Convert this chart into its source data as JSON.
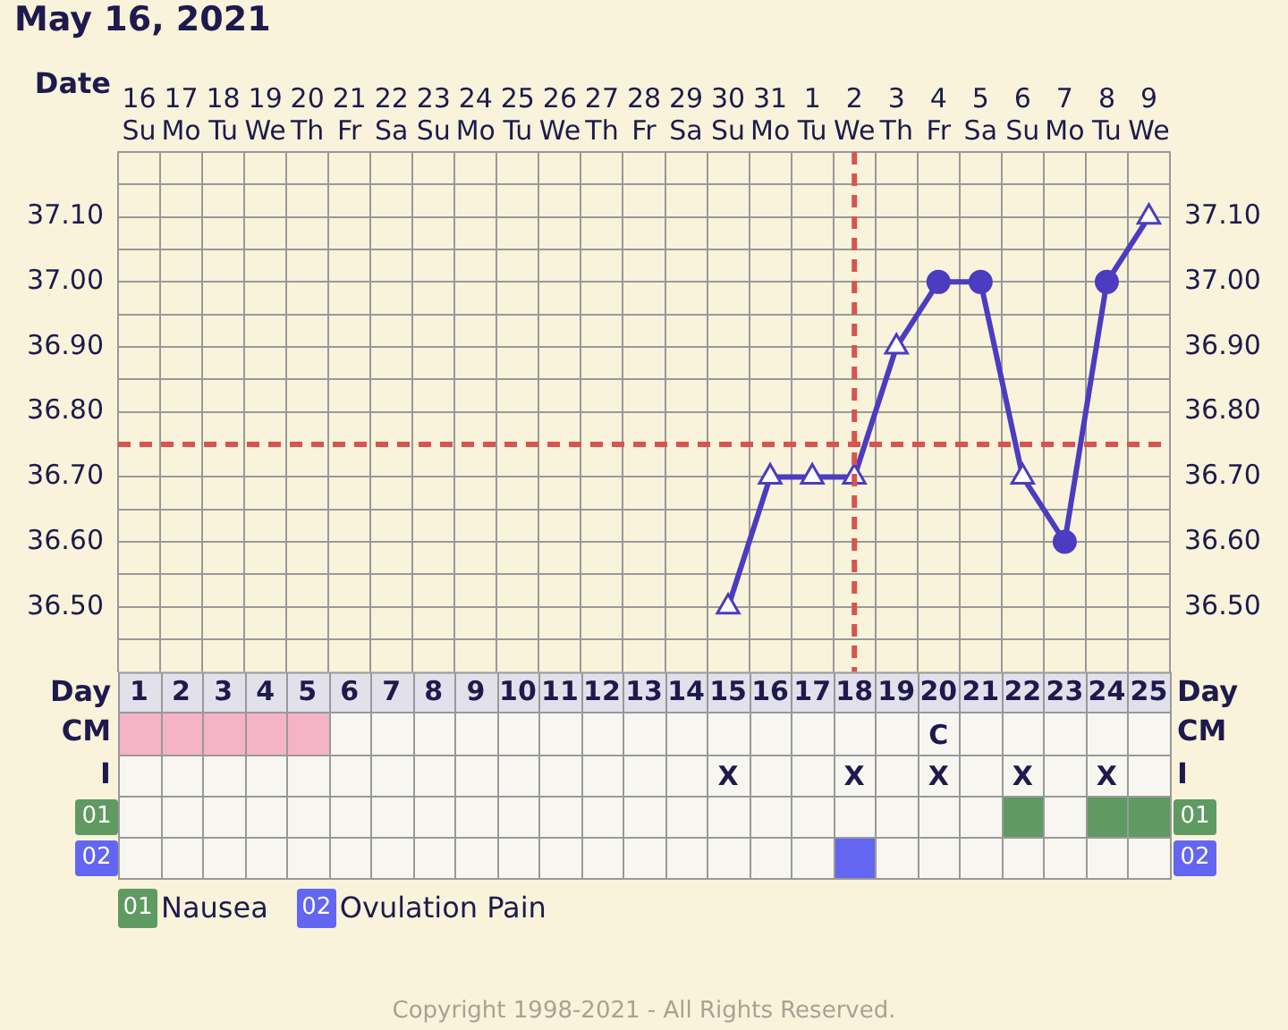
{
  "chart_data": [
    {
      "type": "line",
      "title": "May 16, 2021",
      "xlabel": "Date",
      "x2label": "Day",
      "categories": [
        "16\nSu",
        "17\nMo",
        "18\nTu",
        "19\nWe",
        "20\nTh",
        "21\nFr",
        "22\nSa",
        "23\nSu",
        "24\nMo",
        "25\nTu",
        "26\nWe",
        "27\nTh",
        "28\nFr",
        "29\nSa",
        "30\nSu",
        "31\nMo",
        "1\nTu",
        "2\nWe",
        "3\nTh",
        "4\nFr",
        "5\nSa",
        "6\nSu",
        "7\nMo",
        "8\nTu",
        "9\nWe"
      ],
      "series": [
        {
          "type": "line",
          "color": "#4b3cc0",
          "marker": "none",
          "values": [
            null,
            null,
            null,
            null,
            null,
            null,
            null,
            null,
            null,
            null,
            null,
            null,
            null,
            null,
            36.5,
            36.7,
            36.7,
            36.7,
            36.9,
            37.0,
            37.0,
            36.7,
            36.6,
            37.0,
            37.1
          ]
        },
        {
          "type": "scatter",
          "color": "#4b3cc0",
          "marker": "triangle",
          "values": [
            null,
            null,
            null,
            null,
            null,
            null,
            null,
            null,
            null,
            null,
            null,
            null,
            null,
            null,
            36.5,
            36.7,
            36.7,
            36.7,
            36.9,
            null,
            null,
            36.7,
            null,
            null,
            37.1
          ]
        },
        {
          "type": "scatter",
          "color": "#4b3cc0",
          "marker": "circle",
          "values": [
            null,
            null,
            null,
            null,
            null,
            null,
            null,
            null,
            null,
            null,
            null,
            null,
            null,
            null,
            null,
            null,
            null,
            null,
            null,
            37.0,
            37.0,
            null,
            36.6,
            37.0,
            null
          ]
        }
      ],
      "ylim": [
        36.4,
        37.2
      ],
      "yticks": [
        {
          "value": 36.45,
          "label": null
        },
        {
          "value": 36.5,
          "label": "36.50"
        },
        {
          "value": 36.55,
          "label": null
        },
        {
          "value": 36.6,
          "label": "36.60"
        },
        {
          "value": 36.65,
          "label": null
        },
        {
          "value": 36.7,
          "label": "36.70"
        },
        {
          "value": 36.8,
          "label": "36.80"
        },
        {
          "value": 36.85,
          "label": null
        },
        {
          "value": 36.9,
          "label": "36.90"
        },
        {
          "value": 36.95,
          "label": null
        },
        {
          "value": 37.0,
          "label": "37.00"
        },
        {
          "value": 37.05,
          "label": null
        },
        {
          "value": 37.1,
          "label": "37.10"
        },
        {
          "value": 37.15,
          "label": null
        }
      ],
      "y2lim": [
        36.4,
        37.2
      ],
      "y2ticks": [
        {
          "value": 36.5,
          "label": "36.50"
        },
        {
          "value": 36.6,
          "label": "36.60"
        },
        {
          "value": 36.7,
          "label": "36.70"
        },
        {
          "value": 36.8,
          "label": "36.80"
        },
        {
          "value": 36.9,
          "label": "36.90"
        },
        {
          "value": 37.0,
          "label": "37.00"
        },
        {
          "value": 37.1,
          "label": "37.10"
        }
      ],
      "x2lim": [
        0.5,
        25.5
      ],
      "x2ticks": [
        1,
        2,
        3,
        4,
        5,
        6,
        7,
        8,
        9,
        10,
        11,
        12,
        13,
        14,
        15,
        16,
        17,
        18,
        19,
        20,
        21,
        22,
        23,
        24,
        25
      ],
      "grid": true,
      "legend": false,
      "ref_lines": [
        {
          "axis": "y",
          "value": 36.75,
          "color": "#d9534f",
          "line_style": "dashed"
        },
        {
          "axis": "x",
          "value": "2\nWe",
          "color": "#d9534f",
          "line_style": "dashed"
        }
      ]
    },
    {
      "type": "other",
      "y_categories": [
        "CM",
        "I",
        "01",
        "02"
      ],
      "y2_categories": [
        "CM",
        "I",
        "01",
        "02"
      ],
      "cells": [
        [
          true,
          true,
          true,
          true,
          true,
          null,
          null,
          null,
          null,
          null,
          null,
          null,
          null,
          null,
          null,
          null,
          null,
          null,
          null,
          null,
          null,
          null,
          null,
          null,
          null
        ],
        [
          null,
          null,
          null,
          null,
          null,
          null,
          null,
          null,
          null,
          null,
          null,
          null,
          null,
          null,
          null,
          null,
          null,
          null,
          null,
          null,
          null,
          null,
          null,
          null,
          null
        ],
        [
          null,
          null,
          null,
          null,
          null,
          null,
          null,
          null,
          null,
          null,
          null,
          null,
          null,
          null,
          null,
          null,
          null,
          null,
          null,
          null,
          null,
          true,
          null,
          true,
          true
        ],
        [
          null,
          null,
          null,
          null,
          null,
          null,
          null,
          null,
          null,
          null,
          null,
          null,
          null,
          null,
          null,
          null,
          null,
          true,
          null,
          null,
          null,
          null,
          null,
          null,
          null
        ]
      ],
      "cell_labels": [
        [
          null,
          null,
          null,
          null,
          null,
          null,
          null,
          null,
          null,
          null,
          null,
          null,
          null,
          null,
          null,
          null,
          null,
          null,
          null,
          "C",
          null,
          null,
          null,
          null,
          null
        ],
        [
          null,
          null,
          null,
          null,
          null,
          null,
          null,
          null,
          null,
          null,
          null,
          null,
          null,
          null,
          "X",
          null,
          null,
          "X",
          null,
          "X",
          null,
          "X",
          null,
          "X",
          null
        ],
        [
          null,
          null,
          null,
          null,
          null,
          null,
          null,
          null,
          null,
          null,
          null,
          null,
          null,
          null,
          null,
          null,
          null,
          null,
          null,
          null,
          null,
          null,
          null,
          null,
          null
        ],
        [
          null,
          null,
          null,
          null,
          null,
          null,
          null,
          null,
          null,
          null,
          null,
          null,
          null,
          null,
          null,
          null,
          null,
          null,
          null,
          null,
          null,
          null,
          null,
          null,
          null
        ]
      ],
      "colors": [
        "#f4b3c6",
        null,
        "#5f9a62",
        "#6366f0"
      ],
      "annotations": [
        "Nausea",
        "Ovulation Pain",
        "Copyright 1998-2021 - All Rights Reserved."
      ]
    }
  ]
}
